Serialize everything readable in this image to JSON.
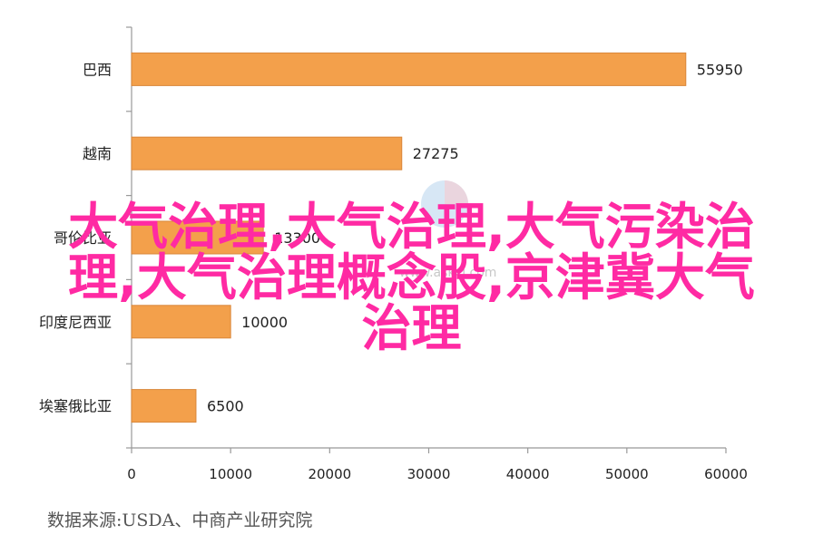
{
  "chart_data": {
    "type": "bar",
    "orientation": "horizontal",
    "categories": [
      "巴西",
      "越南",
      "哥伦比亚",
      "印度尼西亚",
      "埃塞俄比亚"
    ],
    "values": [
      55950,
      27275,
      13300,
      10000,
      6500
    ],
    "xlim": [
      0,
      60000
    ],
    "xticks": [
      "0",
      "10000",
      "20000",
      "30000",
      "40000",
      "50000",
      "60000"
    ],
    "bar_color": "#f3a04b",
    "grid": false
  },
  "source": "数据来源:USDA、中商产业研究院",
  "overlay_lines": [
    "大气治理,大气治理,大气污染治",
    "理,大气治理概念股,京津冀大气",
    "治理"
  ],
  "overlay_color": "#ff2aa3",
  "watermark": "www.askci.com"
}
